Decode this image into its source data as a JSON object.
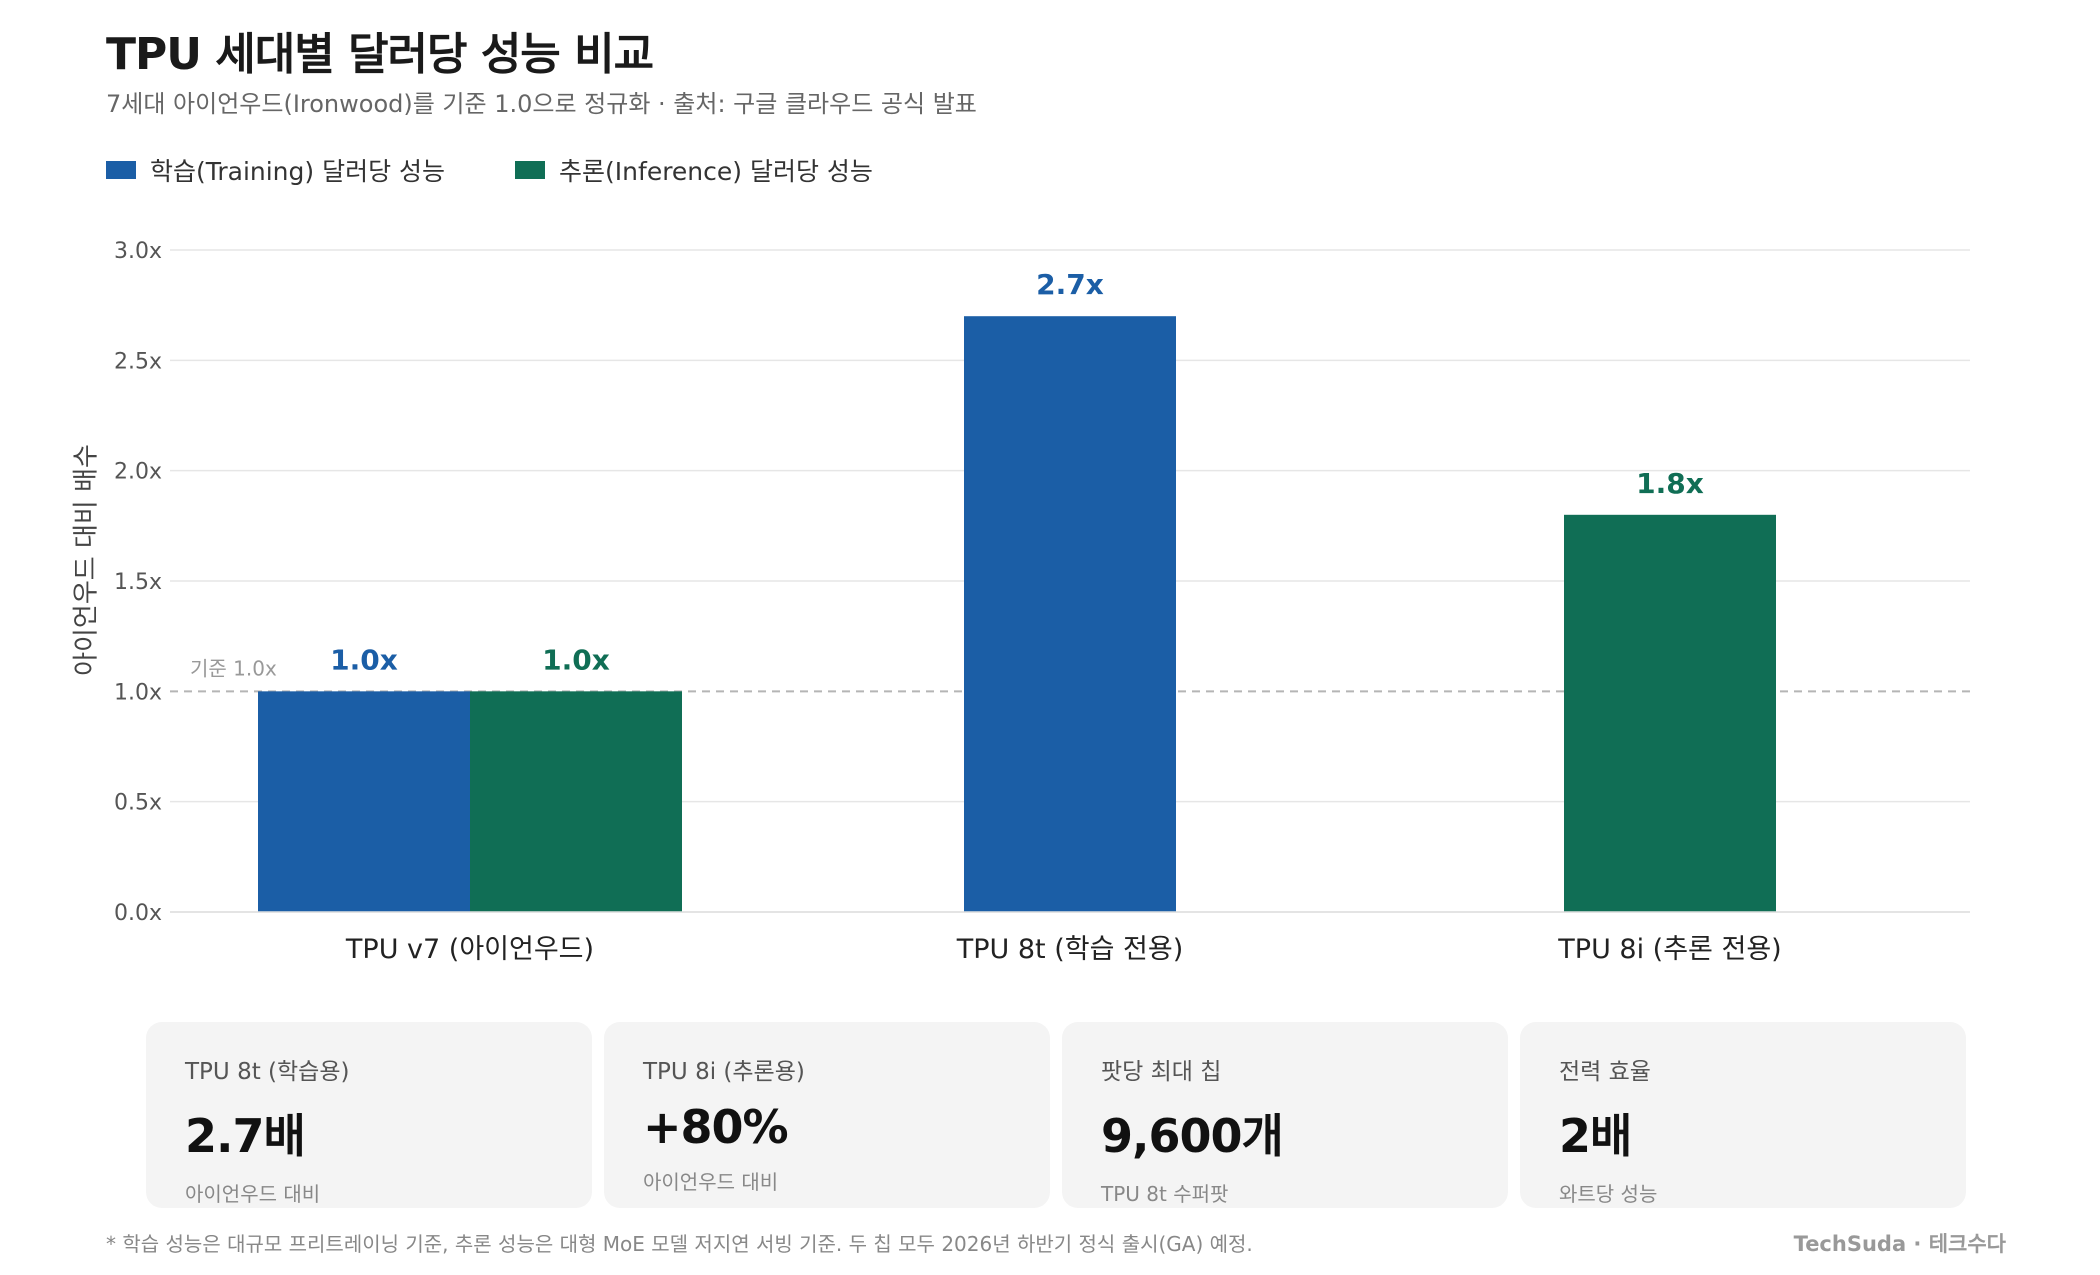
{
  "header": {
    "title": "TPU 세대별 달러당 성능 비교",
    "subtitle": "7세대 아이언우드(Ironwood)를 기준 1.0으로 정규화 · 출처: 구글 클라우드 공식 발표"
  },
  "chart_data": {
    "type": "bar",
    "categories": [
      "TPU v7 (아이언우드)",
      "TPU 8t (학습 전용)",
      "TPU 8i (추론 전용)"
    ],
    "series": [
      {
        "name": "학습(Training) 달러당 성능",
        "color": "#1b5ea6",
        "values": [
          1.0,
          2.7,
          null
        ],
        "labels": [
          "1.0x",
          "2.7x",
          null
        ]
      },
      {
        "name": "추론(Inference) 달러당 성능",
        "color": "#106e55",
        "values": [
          1.0,
          null,
          1.8
        ],
        "labels": [
          "1.0x",
          null,
          "1.8x"
        ]
      }
    ],
    "ylabel": "아이언우드 대비 배수",
    "ylim": [
      0,
      3.0
    ],
    "yticks": [
      0.0,
      0.5,
      1.0,
      1.5,
      2.0,
      2.5,
      3.0
    ],
    "ytick_labels": [
      "0.0x",
      "0.5x",
      "1.0x",
      "1.5x",
      "2.0x",
      "2.5x",
      "3.0x"
    ],
    "reference_line": {
      "value": 1.0,
      "label": "기준 1.0x"
    },
    "grid": true,
    "legend_position": "top-left"
  },
  "cards": [
    {
      "label": "TPU 8t (학습용)",
      "value": "2.7배",
      "sub": "아이언우드 대비"
    },
    {
      "label": "TPU 8i (추론용)",
      "value": "+80%",
      "sub": "아이언우드 대비"
    },
    {
      "label": "팟당 최대 칩",
      "value": "9,600개",
      "sub": "TPU 8t 수퍼팟"
    },
    {
      "label": "전력 효율",
      "value": "2배",
      "sub": "와트당 성능"
    }
  ],
  "footer": {
    "note": "* 학습 성능은 대규모 프리트레이닝 기준, 추론 성능은 대형 MoE 모델 저지연 서빙 기준. 두 칩 모두 2026년 하반기 정식 출시(GA) 예정.",
    "brand": "TechSuda · 테크수다"
  }
}
